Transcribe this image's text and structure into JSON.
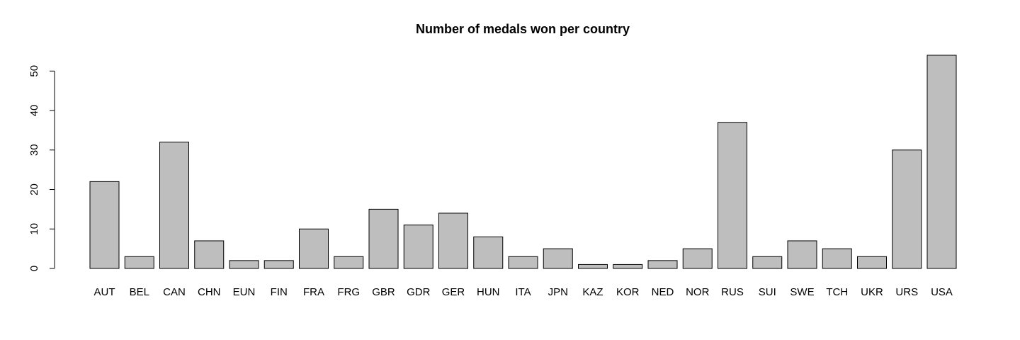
{
  "chart_data": {
    "type": "bar",
    "title": "Number of medals won per country",
    "xlabel": "",
    "ylabel": "",
    "categories": [
      "AUT",
      "BEL",
      "CAN",
      "CHN",
      "EUN",
      "FIN",
      "FRA",
      "FRG",
      "GBR",
      "GDR",
      "GER",
      "HUN",
      "ITA",
      "JPN",
      "KAZ",
      "KOR",
      "NED",
      "NOR",
      "RUS",
      "SUI",
      "SWE",
      "TCH",
      "UKR",
      "URS",
      "USA"
    ],
    "values": [
      22,
      3,
      32,
      7,
      2,
      2,
      10,
      3,
      15,
      11,
      14,
      8,
      3,
      5,
      1,
      1,
      2,
      5,
      37,
      3,
      7,
      5,
      3,
      30,
      54
    ],
    "yticks": [
      0,
      10,
      20,
      30,
      40,
      50
    ],
    "ylim": [
      0,
      54
    ],
    "bar_color": "#bebebe",
    "grid": false,
    "legend": "none"
  }
}
